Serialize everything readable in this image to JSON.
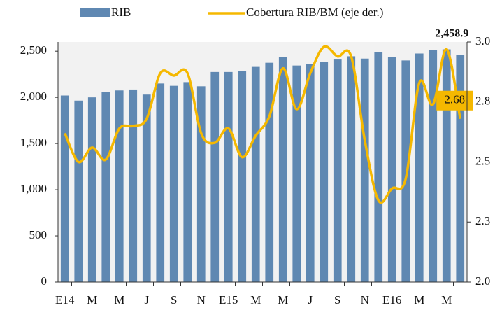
{
  "chart_data": {
    "type": "bar-line",
    "categories": [
      "E14",
      null,
      "M",
      null,
      "M",
      null,
      "J",
      null,
      "S",
      null,
      "N",
      null,
      "E15",
      null,
      "M",
      null,
      "M",
      null,
      "J",
      null,
      "S",
      null,
      "N",
      null,
      "E16",
      null,
      "M",
      null,
      "M",
      null
    ],
    "series": [
      {
        "name": "RIB",
        "type": "bar",
        "color": "#5f88b2",
        "values": [
          2020,
          1965,
          2000,
          2060,
          2075,
          2085,
          2030,
          2150,
          2125,
          2165,
          2120,
          2275,
          2275,
          2285,
          2330,
          2375,
          2440,
          2345,
          2365,
          2385,
          2410,
          2445,
          2420,
          2490,
          2440,
          2400,
          2475,
          2515,
          2520,
          2458.9
        ],
        "value_labels": [
          null,
          null,
          null,
          null,
          null,
          null,
          null,
          null,
          null,
          null,
          null,
          null,
          null,
          null,
          null,
          null,
          null,
          null,
          null,
          null,
          null,
          null,
          null,
          null,
          null,
          null,
          null,
          null,
          null,
          "2,458.9"
        ]
      },
      {
        "name": "Cobertura RIB/BM (eje der.)",
        "type": "line",
        "axis": "y2",
        "color": "#f5b800",
        "values": [
          2.62,
          2.5,
          2.56,
          2.51,
          2.64,
          2.65,
          2.68,
          2.87,
          2.86,
          2.87,
          2.62,
          2.58,
          2.64,
          2.52,
          2.61,
          2.69,
          2.89,
          2.72,
          2.87,
          2.98,
          2.94,
          2.94,
          2.59,
          2.34,
          2.39,
          2.43,
          2.83,
          2.74,
          2.97,
          2.68
        ],
        "value_labels": [
          null,
          null,
          null,
          null,
          null,
          null,
          null,
          null,
          null,
          null,
          null,
          null,
          null,
          null,
          null,
          null,
          null,
          null,
          null,
          null,
          null,
          null,
          null,
          null,
          null,
          null,
          null,
          null,
          null,
          "2.68"
        ]
      }
    ],
    "ylim": [
      0,
      2600
    ],
    "yticks": [
      0,
      500,
      {
        "value": 1000,
        "label": "1,000"
      },
      {
        "value": 1500,
        "label": "1,500"
      },
      {
        "value": 2000,
        "label": "2,000"
      },
      {
        "value": 2500,
        "label": "2,500"
      }
    ],
    "y2lim": [
      2.0,
      3.0
    ],
    "y2ticks": [
      {
        "value": 2.0,
        "label": "2.0"
      },
      {
        "value": 2.25,
        "label": "2.3"
      },
      2.5,
      {
        "value": 2.75,
        "label": "2.8"
      },
      {
        "value": 3.0,
        "label": "3.0"
      }
    ],
    "plot_background": "#f2f2f2",
    "legend": "top"
  }
}
